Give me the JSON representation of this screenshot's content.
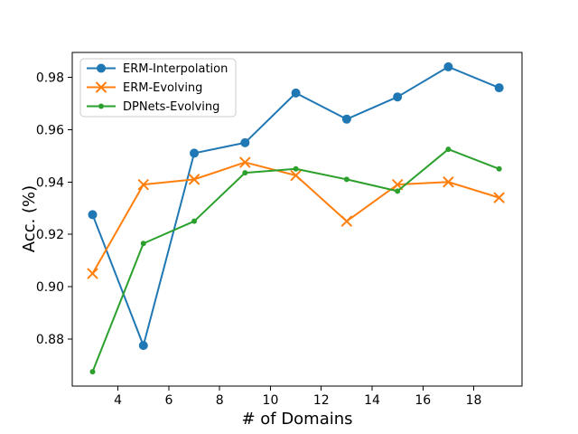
{
  "chart_data": {
    "type": "line",
    "title": "",
    "xlabel": "# of Domains",
    "ylabel": "Acc. (%)",
    "x": [
      3,
      5,
      7,
      9,
      11,
      13,
      15,
      17,
      19
    ],
    "series": [
      {
        "name": "ERM-Interpolation",
        "color": "#1f77b4",
        "marker": "circle",
        "values": [
          0.9275,
          0.8775,
          0.951,
          0.955,
          0.974,
          0.964,
          0.9725,
          0.984,
          0.976
        ]
      },
      {
        "name": "ERM-Evolving",
        "color": "#ff7f0e",
        "marker": "x",
        "values": [
          0.905,
          0.939,
          0.941,
          0.9475,
          0.9425,
          0.925,
          0.939,
          0.94,
          0.934
        ]
      },
      {
        "name": "DPNets-Evolving",
        "color": "#2ca02c",
        "marker": "dot",
        "values": [
          0.8675,
          0.9165,
          0.925,
          0.9435,
          0.945,
          0.941,
          0.9365,
          0.9525,
          0.945
        ]
      }
    ],
    "xticks": [
      4,
      6,
      8,
      10,
      12,
      14,
      16,
      18
    ],
    "yticks": [
      0.88,
      0.9,
      0.92,
      0.94,
      0.96,
      0.98
    ],
    "ytick_labels": [
      "0.88",
      "0.90",
      "0.92",
      "0.94",
      "0.96",
      "0.98"
    ],
    "xlim": [
      2.2,
      19.9
    ],
    "ylim": [
      0.862,
      0.9895
    ],
    "grid": false,
    "legend_position": "upper-left",
    "background": "#ffffff",
    "axis_color": "#000000",
    "legend_border_color": "#cccccc"
  }
}
